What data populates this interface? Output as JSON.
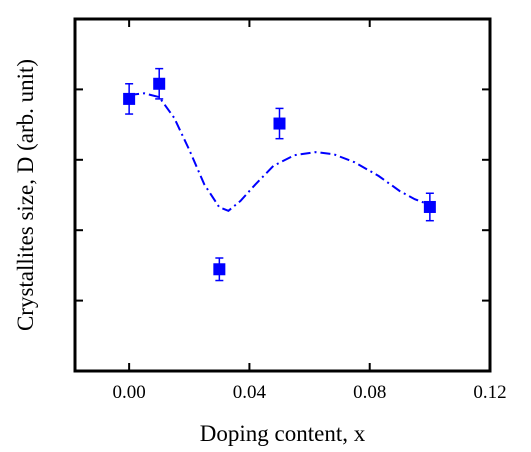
{
  "chart_data": {
    "type": "scatter",
    "xlabel": "Doping content, x",
    "ylabel": "Crystallites size, D (arb. unit)",
    "xlim": [
      -0.018,
      0.12
    ],
    "ylim": [
      0,
      1
    ],
    "x_ticks": [
      0.0,
      0.04,
      0.08,
      0.12
    ],
    "x_tick_labels": [
      "0.00",
      "0.04",
      "0.08",
      "0.12"
    ],
    "y_ticks": [
      0.2,
      0.4,
      0.6,
      0.8
    ],
    "y_tick_labels": [],
    "grid": false,
    "legend": "none",
    "series": [
      {
        "kind": "points",
        "marker": "square",
        "color": "#0000ff",
        "points": [
          {
            "x": 0.0,
            "y": 0.773,
            "err": 0.043
          },
          {
            "x": 0.01,
            "y": 0.816,
            "err": 0.043
          },
          {
            "x": 0.03,
            "y": 0.289,
            "err": 0.032
          },
          {
            "x": 0.05,
            "y": 0.703,
            "err": 0.043
          },
          {
            "x": 0.1,
            "y": 0.466,
            "err": 0.039
          }
        ]
      },
      {
        "kind": "trend",
        "style": "dash-dot",
        "color": "#0000ff",
        "x": [
          0.0,
          0.005,
          0.01,
          0.015,
          0.02,
          0.025,
          0.03,
          0.033,
          0.037,
          0.042,
          0.048,
          0.055,
          0.062,
          0.068,
          0.075,
          0.083,
          0.09,
          0.095,
          0.1
        ],
        "y": [
          0.784,
          0.789,
          0.778,
          0.719,
          0.628,
          0.53,
          0.465,
          0.455,
          0.483,
          0.53,
          0.583,
          0.613,
          0.622,
          0.616,
          0.593,
          0.554,
          0.511,
          0.488,
          0.472
        ]
      }
    ]
  }
}
